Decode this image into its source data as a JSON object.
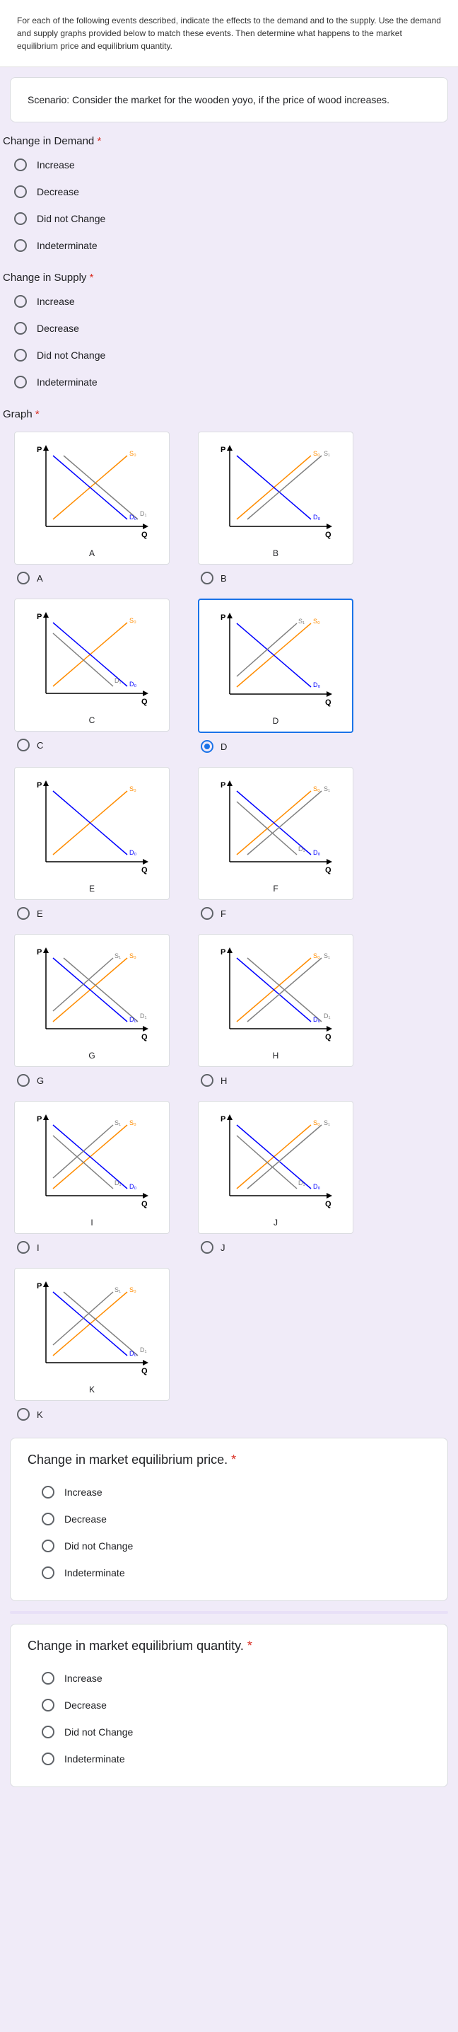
{
  "intro": "For each of the following events described, indicate the effects to the demand and to the supply. Use the demand and supply graphs provided below to match these events. Then determine what happens to the market equilibrium price and equilibrium quantity.",
  "scenario": "Scenario: Consider the market for the wooden yoyo, if the price of wood increases.",
  "required_mark": "*",
  "demand_header": "Change in Demand",
  "supply_header": "Change in Supply",
  "graph_header": "Graph",
  "price_header": "Change in market equilibrium price.",
  "quantity_header": "Change in market equilibrium quantity.",
  "options": {
    "increase": "Increase",
    "decrease": "Decrease",
    "didnot": "Did not Change",
    "indet": "Indeterminate"
  },
  "graph_labels": {
    "A": "A",
    "B": "B",
    "C": "C",
    "D": "D",
    "E": "E",
    "F": "F",
    "G": "G",
    "H": "H",
    "I": "I",
    "J": "J",
    "K": "K"
  },
  "axis": {
    "P": "P",
    "Q": "Q",
    "S0": "S₀",
    "S1": "S₁",
    "D0": "D₀",
    "D1": "D₁"
  },
  "colors": {
    "axis": "#000000",
    "supply": "#ff8c00",
    "demand": "#0000ff",
    "shift": "#808080"
  },
  "selected_graph": "D"
}
